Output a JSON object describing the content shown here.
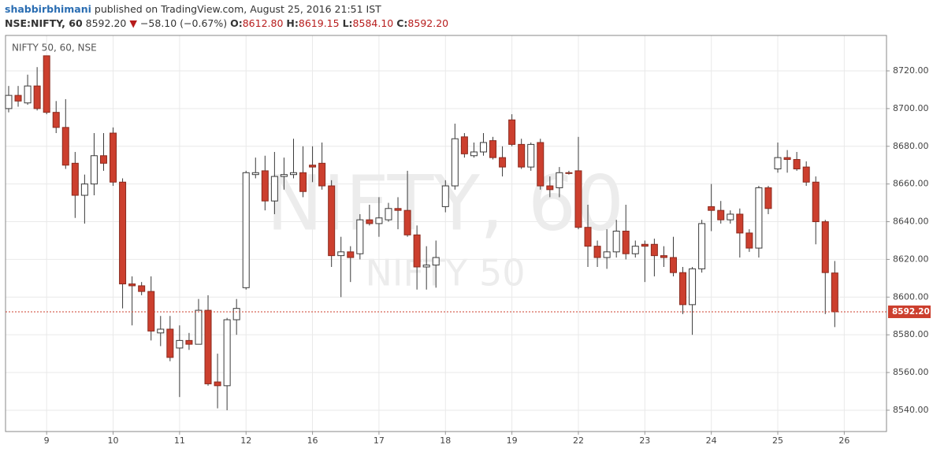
{
  "header": {
    "author": "shabbirbhimani",
    "published": "published on TradingView.com, August 25, 2016 21:51 IST",
    "symbol": "NSE:NIFTY, 60",
    "last": "8592.20",
    "arrow": "▼",
    "change": "−58.10 (−0.67%)",
    "o_label": "O:",
    "o": "8612.80",
    "h_label": "H:",
    "h": "8619.15",
    "l_label": "L:",
    "l": "8584.10",
    "c_label": "C:",
    "c": "8592.20"
  },
  "chart_data": {
    "type": "candlestick",
    "legend": "NIFTY 50, 60, NSE",
    "watermark": "NIFTY, 60",
    "watermark_sub": "NIFTY 50",
    "up_color": "#ffffff",
    "down_color": "#cc3f2e",
    "edge_color": "#3a3a3a",
    "open": [
      8700,
      8707,
      8703,
      8712,
      8728,
      8698,
      8690,
      8671,
      8654,
      8660,
      8675,
      8687,
      8661,
      8607,
      8606,
      8603,
      8581,
      8583,
      8573,
      8577,
      8575,
      8593,
      8555,
      8553,
      8588,
      8605,
      8665,
      8667,
      8651,
      8664,
      8665,
      8666,
      8670,
      8671,
      8659,
      8622,
      8624,
      8623,
      8641,
      8639,
      8641,
      8647,
      8646,
      8633,
      8616,
      8617,
      8648,
      8659,
      8685,
      8675,
      8677,
      8683,
      8674,
      8694,
      8681,
      8669,
      8682,
      8659,
      8658,
      8666,
      8667,
      8637,
      8627,
      8621,
      8624,
      8635,
      8623,
      8628,
      8628,
      8622,
      8621,
      8613,
      8596,
      8615,
      8648,
      8646,
      8641,
      8644,
      8634,
      8626,
      8658,
      8668,
      8674,
      8673,
      8669,
      8661,
      8640,
      8612.8
    ],
    "high": [
      8712,
      8712,
      8718,
      8722,
      8728,
      8704,
      8705,
      8677,
      8665,
      8687,
      8687,
      8690,
      8663,
      8611,
      8608,
      8611,
      8590,
      8590,
      8585,
      8581,
      8599,
      8601,
      8570,
      8589,
      8599,
      8667,
      8674,
      8675,
      8677,
      8674,
      8684,
      8680,
      8680,
      8682,
      8662,
      8632,
      8627,
      8644,
      8649,
      8653,
      8650,
      8653,
      8667,
      8638,
      8627,
      8630,
      8662,
      8692,
      8687,
      8682,
      8687,
      8685,
      8680,
      8697,
      8684,
      8682,
      8684,
      8664,
      8669,
      8667,
      8685,
      8649,
      8630,
      8636,
      8641,
      8649,
      8630,
      8630,
      8631,
      8627,
      8632,
      8616,
      8616,
      8641,
      8660,
      8651,
      8646,
      8647,
      8636,
      8659,
      8659,
      8682,
      8678,
      8677,
      8672,
      8664,
      8641,
      8619.15
    ],
    "low": [
      8698,
      8701,
      8702,
      8699,
      8697,
      8687,
      8668,
      8642,
      8639,
      8654,
      8667,
      8659,
      8594,
      8585,
      8601,
      8577,
      8574,
      8566,
      8547,
      8572,
      8575,
      8553,
      8541,
      8540,
      8580,
      8604,
      8663,
      8646,
      8644,
      8657,
      8663,
      8653,
      8661,
      8657,
      8616,
      8600,
      8608,
      8620,
      8638,
      8632,
      8640,
      8636,
      8632,
      8604,
      8604,
      8605,
      8645,
      8657,
      8674,
      8674,
      8675,
      8673,
      8664,
      8680,
      8668,
      8667,
      8657,
      8653,
      8653,
      8665,
      8636,
      8616,
      8616,
      8615,
      8621,
      8620,
      8621,
      8608,
      8611,
      8616,
      8611,
      8591,
      8580,
      8613,
      8635,
      8639,
      8639,
      8621,
      8624,
      8621,
      8644,
      8666,
      8666,
      8667,
      8659,
      8628,
      8591,
      8584.1
    ],
    "close": [
      8707,
      8704,
      8712,
      8700,
      8698,
      8690,
      8670,
      8654,
      8660,
      8675,
      8671,
      8661,
      8607,
      8606,
      8603,
      8582,
      8583,
      8568,
      8577,
      8575,
      8593,
      8554,
      8553,
      8588,
      8594,
      8666,
      8666,
      8651,
      8664,
      8665,
      8666,
      8656,
      8669,
      8659,
      8622,
      8624,
      8621,
      8641,
      8639,
      8642,
      8647,
      8646,
      8633,
      8616,
      8617,
      8621,
      8659,
      8684,
      8676,
      8677,
      8682,
      8674,
      8669,
      8681,
      8669,
      8681,
      8659,
      8657,
      8666,
      8666,
      8637,
      8627,
      8621,
      8624,
      8635,
      8623,
      8627,
      8627,
      8622,
      8621,
      8613,
      8596,
      8615,
      8639,
      8646,
      8641,
      8644,
      8634,
      8626,
      8658,
      8647,
      8674,
      8673,
      8668,
      8661,
      8640,
      8613,
      8592.2
    ],
    "xlim": [
      -0.33,
      92.45
    ],
    "xticks": [
      {
        "value": 4,
        "label": "9"
      },
      {
        "value": 11,
        "label": "10"
      },
      {
        "value": 18,
        "label": "11"
      },
      {
        "value": 25,
        "label": "12"
      },
      {
        "value": 32,
        "label": "16"
      },
      {
        "value": 39,
        "label": "17"
      },
      {
        "value": 46,
        "label": "18"
      },
      {
        "value": 53,
        "label": "19"
      },
      {
        "value": 60,
        "label": "22"
      },
      {
        "value": 67,
        "label": "23"
      },
      {
        "value": 74,
        "label": "24"
      },
      {
        "value": 81,
        "label": "25"
      },
      {
        "value": 88,
        "label": "26"
      }
    ],
    "ylim": [
      8528.7,
      8738.8
    ],
    "yticks": [
      {
        "value": 8540,
        "label": "8540.00"
      },
      {
        "value": 8560,
        "label": "8560.00"
      },
      {
        "value": 8580,
        "label": "8580.00"
      },
      {
        "value": 8600,
        "label": "8600.00"
      },
      {
        "value": 8620,
        "label": "8620.00"
      },
      {
        "value": 8640,
        "label": "8640.00"
      },
      {
        "value": 8660,
        "label": "8660.00"
      },
      {
        "value": 8680,
        "label": "8680.00"
      },
      {
        "value": 8700,
        "label": "8700.00"
      },
      {
        "value": 8720,
        "label": "8720.00"
      }
    ],
    "last_price": {
      "value": 8592.2,
      "label": "8592.20"
    },
    "last_color": "#cc3f2e",
    "grid": true
  }
}
